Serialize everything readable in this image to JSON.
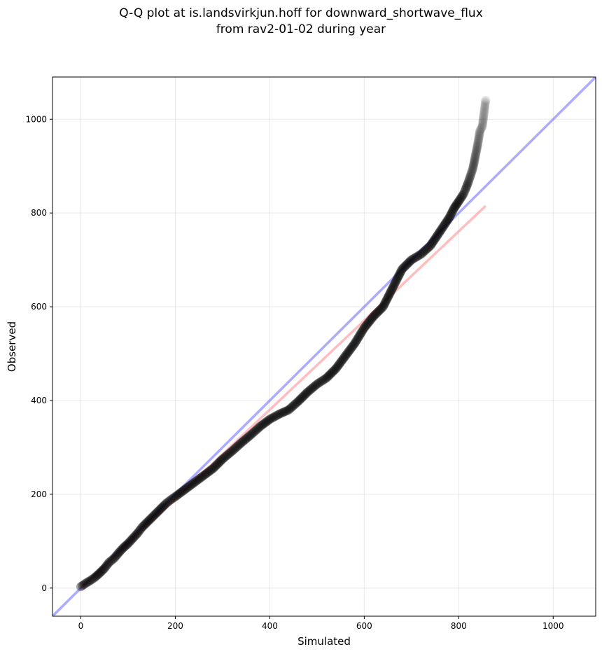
{
  "chart_data": {
    "type": "scatter",
    "title_lines": [
      "Q-Q plot at is.landsvirkjun.hoff for downward_shortwave_flux",
      "from rav2-01-02 during year"
    ],
    "xlabel": "Simulated",
    "ylabel": "Observed",
    "xlim": [
      -60,
      1090
    ],
    "ylim": [
      -60,
      1090
    ],
    "xticks": [
      0,
      200,
      400,
      600,
      800,
      1000
    ],
    "yticks": [
      0,
      200,
      400,
      600,
      800,
      1000
    ],
    "grid": true,
    "reference_lines": [
      {
        "kind": "1:1 line",
        "color": "#8080ff",
        "points": [
          [
            -60,
            -60
          ],
          [
            1090,
            1090
          ]
        ]
      },
      {
        "kind": "fit line",
        "color": "#ff9999",
        "points": [
          [
            0,
            0
          ],
          [
            857,
            815
          ]
        ]
      }
    ],
    "quantile_points": [
      [
        0,
        3
      ],
      [
        10,
        10
      ],
      [
        20,
        16
      ],
      [
        30,
        23
      ],
      [
        40,
        32
      ],
      [
        50,
        42
      ],
      [
        60,
        55
      ],
      [
        70,
        63
      ],
      [
        80,
        75
      ],
      [
        90,
        86
      ],
      [
        100,
        95
      ],
      [
        110,
        106
      ],
      [
        120,
        117
      ],
      [
        130,
        130
      ],
      [
        140,
        140
      ],
      [
        150,
        150
      ],
      [
        160,
        160
      ],
      [
        170,
        170
      ],
      [
        180,
        180
      ],
      [
        190,
        188
      ],
      [
        200,
        195
      ],
      [
        220,
        210
      ],
      [
        240,
        225
      ],
      [
        260,
        240
      ],
      [
        280,
        255
      ],
      [
        300,
        275
      ],
      [
        320,
        292
      ],
      [
        340,
        310
      ],
      [
        360,
        327
      ],
      [
        380,
        345
      ],
      [
        400,
        360
      ],
      [
        420,
        371
      ],
      [
        440,
        380
      ],
      [
        460,
        398
      ],
      [
        480,
        418
      ],
      [
        500,
        435
      ],
      [
        520,
        448
      ],
      [
        540,
        468
      ],
      [
        560,
        495
      ],
      [
        580,
        522
      ],
      [
        600,
        555
      ],
      [
        620,
        580
      ],
      [
        640,
        600
      ],
      [
        660,
        640
      ],
      [
        680,
        680
      ],
      [
        700,
        700
      ],
      [
        720,
        712
      ],
      [
        740,
        730
      ],
      [
        760,
        760
      ],
      [
        780,
        790
      ],
      [
        790,
        810
      ],
      [
        800,
        825
      ],
      [
        810,
        840
      ],
      [
        815,
        852
      ],
      [
        820,
        865
      ],
      [
        825,
        880
      ],
      [
        830,
        895
      ],
      [
        835,
        920
      ],
      [
        840,
        945
      ],
      [
        845,
        975
      ],
      [
        850,
        985
      ],
      [
        857,
        1040
      ]
    ]
  }
}
